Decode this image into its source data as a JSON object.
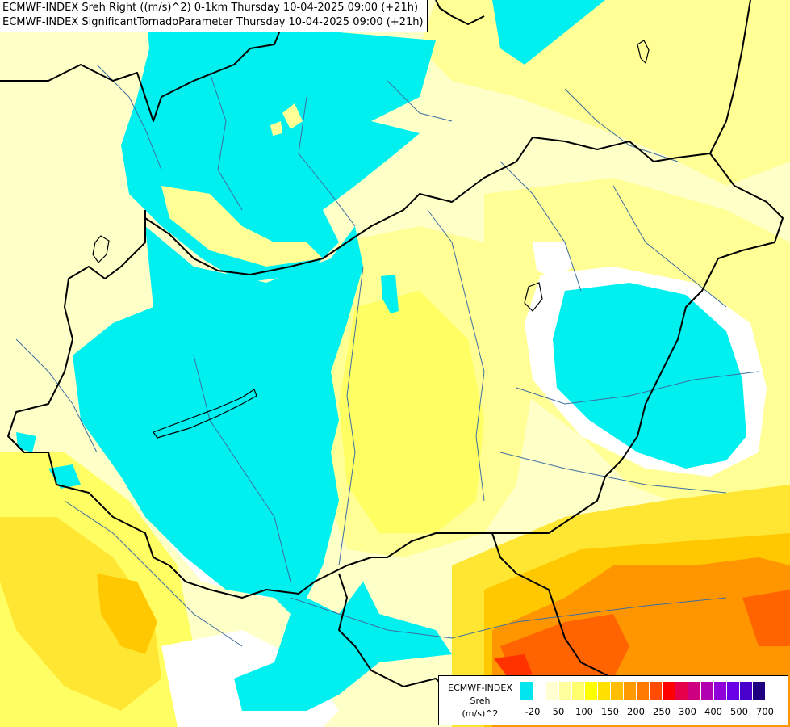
{
  "header": {
    "line1": "ECMWF-INDEX Sreh Right ((m/s)^2) 0-1km Thursday 10-04-2025 09:00 (+21h)",
    "line2": "ECMWF-INDEX SignificantTornadoParameter Thursday 10-04-2025 09:00 (+21h)"
  },
  "legend": {
    "title_lines": [
      "ECMWF-INDEX",
      "Sreh",
      "(m/s)^2"
    ],
    "colors": [
      "#00e5ee",
      "#ffffff",
      "#ffffd2",
      "#ffff9e",
      "#ffff6e",
      "#ffff00",
      "#ffe000",
      "#ffbf00",
      "#ff9a00",
      "#ff7a00",
      "#ff4c00",
      "#ff0000",
      "#e6004c",
      "#cc0080",
      "#b000b0",
      "#9000d8",
      "#6a00e6",
      "#4800cc",
      "#1e0080"
    ],
    "tick_labels": [
      "-20",
      "50",
      "100",
      "150",
      "200",
      "250",
      "300",
      "400",
      "500",
      "700"
    ]
  },
  "map_colors": {
    "cyan": "#00f0f0",
    "white": "#ffffff",
    "pale": "#ffffc8",
    "light_yellow": "#ffff96",
    "yellow": "#ffff64",
    "gold": "#ffe632",
    "orange": "#ffc800",
    "dark_orange": "#ff9600",
    "red_orange": "#ff6400",
    "red": "#ff3200",
    "borders": "#000000",
    "rivers": "#3c6ea0"
  }
}
